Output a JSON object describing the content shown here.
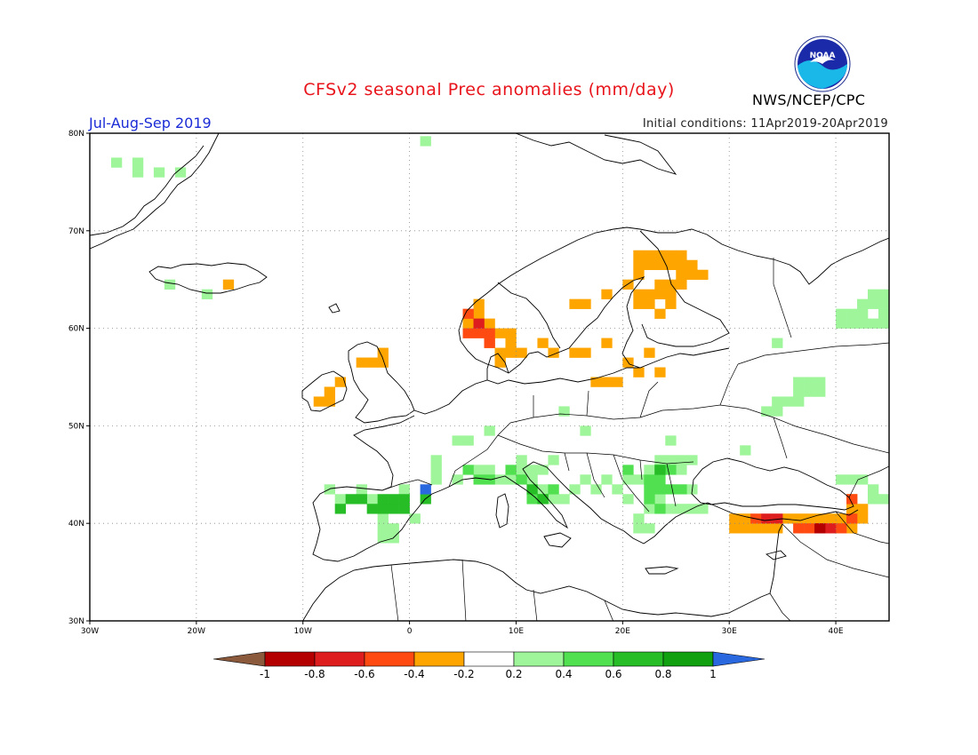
{
  "title": "CFSv2 seasonal Prec anomalies (mm/day)",
  "period": "Jul-Aug-Sep 2019",
  "initial_conditions": "Initial conditions: 11Apr2019-20Apr2019",
  "agency": "NWS/NCEP/CPC",
  "logo_text": "NOAA",
  "map": {
    "lon_range": [
      -30,
      45
    ],
    "lat_range": [
      30,
      80
    ],
    "lon_ticks": [
      "30W",
      "20W",
      "10W",
      "0",
      "10E",
      "20E",
      "30E",
      "40E"
    ],
    "lat_ticks": [
      "80N",
      "70N",
      "60N",
      "50N",
      "40N",
      "30N"
    ]
  },
  "colorbar": {
    "labels": [
      "-1",
      "-0.8",
      "-0.6",
      "-0.4",
      "-0.2",
      "0.2",
      "0.4",
      "0.6",
      "0.8",
      "1"
    ],
    "colors": [
      "#8b5a3c",
      "#b40000",
      "#de1e1e",
      "#ff4a12",
      "#ffa500",
      "#ffffff",
      "#9ef59a",
      "#50e050",
      "#26bd26",
      "#10a010",
      "#2a68e0"
    ]
  },
  "anomaly_regions": [
    {
      "name": "greenland-wet",
      "color": "#9ef59a",
      "cells": [
        [
          -27.5,
          77
        ],
        [
          -25.5,
          77
        ],
        [
          -25.5,
          76
        ],
        [
          -23.5,
          76
        ],
        [
          -21.5,
          76
        ]
      ]
    },
    {
      "name": "iceland",
      "color": "#ffa500",
      "cells": [
        [
          -17,
          64.5
        ]
      ]
    },
    {
      "name": "iceland-wet",
      "color": "#9ef59a",
      "cells": [
        [
          -22.5,
          64.5
        ],
        [
          -19,
          63.5
        ]
      ]
    },
    {
      "name": "svalbard-wet",
      "color": "#9ef59a",
      "cells": [
        [
          1.5,
          79.2
        ]
      ]
    },
    {
      "name": "norway-dry",
      "color": "#ffa500",
      "cells": [
        [
          6.5,
          62.5
        ],
        [
          6.5,
          61.5
        ],
        [
          5.5,
          60.5
        ],
        [
          7.5,
          60.5
        ],
        [
          8.5,
          59.5
        ],
        [
          9.5,
          59.5
        ],
        [
          7.5,
          58.5
        ],
        [
          9.5,
          58.5
        ],
        [
          8.5,
          57.5
        ],
        [
          9.5,
          57.5
        ],
        [
          10.5,
          57.5
        ],
        [
          8.5,
          56.5
        ]
      ]
    },
    {
      "name": "norway-strongdry",
      "color": "#ff4a12",
      "cells": [
        [
          5.5,
          61.5
        ],
        [
          5.5,
          59.5
        ],
        [
          6.5,
          59.5
        ],
        [
          7.5,
          59.5
        ],
        [
          7.5,
          58.5
        ]
      ]
    },
    {
      "name": "norway-reddry",
      "color": "#de1e1e",
      "cells": [
        [
          6.5,
          60.5
        ]
      ]
    },
    {
      "name": "sweden-finland-dry",
      "color": "#ffa500",
      "cells": [
        [
          21.5,
          67.5
        ],
        [
          22.5,
          67.5
        ],
        [
          23.5,
          67.5
        ],
        [
          24.5,
          67.5
        ],
        [
          25.5,
          67.5
        ],
        [
          21.5,
          66.5
        ],
        [
          22.5,
          66.5
        ],
        [
          23.5,
          66.5
        ],
        [
          24.5,
          66.5
        ],
        [
          25.5,
          66.5
        ],
        [
          26.5,
          66.5
        ],
        [
          21.5,
          65.5
        ],
        [
          25.5,
          65.5
        ],
        [
          26.5,
          65.5
        ],
        [
          27.5,
          65.5
        ],
        [
          20.5,
          64.5
        ],
        [
          23.5,
          64.5
        ],
        [
          24.5,
          64.5
        ],
        [
          25.5,
          64.5
        ],
        [
          21.5,
          63.5
        ],
        [
          22.5,
          63.5
        ],
        [
          23.5,
          63.5
        ],
        [
          24.5,
          63.5
        ],
        [
          21.5,
          62.5
        ],
        [
          22.5,
          62.5
        ],
        [
          24.5,
          62.5
        ],
        [
          23.5,
          61.5
        ],
        [
          16.5,
          62.5
        ],
        [
          15.5,
          62.5
        ],
        [
          18.5,
          63.5
        ],
        [
          12.5,
          58.5
        ],
        [
          13.5,
          57.5
        ],
        [
          15.5,
          57.5
        ],
        [
          16.5,
          57.5
        ],
        [
          18.5,
          58.5
        ],
        [
          22.5,
          57.5
        ],
        [
          20.5,
          56.5
        ],
        [
          21.5,
          55.5
        ],
        [
          23.5,
          55.5
        ],
        [
          17.5,
          54.5
        ],
        [
          18.5,
          54.5
        ],
        [
          19.5,
          54.5
        ]
      ]
    },
    {
      "name": "ireland-uk-dry",
      "color": "#ffa500",
      "cells": [
        [
          -8.5,
          52.5
        ],
        [
          -7.5,
          52.5
        ],
        [
          -7.5,
          53.5
        ],
        [
          -6.5,
          54.5
        ],
        [
          -4.5,
          56.5
        ],
        [
          -3.5,
          56.5
        ],
        [
          -2.5,
          56.5
        ],
        [
          -2.5,
          57.5
        ]
      ]
    },
    {
      "name": "iberia-wet",
      "color": "#9ef59a",
      "cells": [
        [
          -7.5,
          43.5
        ],
        [
          -6.5,
          42.5
        ],
        [
          -4.5,
          43.5
        ],
        [
          -3.5,
          42.5
        ],
        [
          -2.5,
          41.5
        ],
        [
          -2.5,
          40.5
        ],
        [
          -2.5,
          39.5
        ],
        [
          -2.5,
          38.5
        ],
        [
          -1.5,
          39.5
        ],
        [
          -1.5,
          38.5
        ],
        [
          0.5,
          40.5
        ],
        [
          -0.5,
          43.5
        ],
        [
          2.5,
          44.5
        ],
        [
          2.5,
          45.5
        ],
        [
          2.5,
          46.5
        ],
        [
          4.5,
          48.5
        ],
        [
          5.5,
          48.5
        ],
        [
          7.5,
          49.5
        ]
      ]
    },
    {
      "name": "iberia-moderate",
      "color": "#26bd26",
      "cells": [
        [
          -6.5,
          41.5
        ],
        [
          -5.5,
          42.5
        ],
        [
          -4.5,
          42.5
        ],
        [
          -3.5,
          41.5
        ],
        [
          -2.5,
          42.5
        ],
        [
          -1.5,
          42.5
        ],
        [
          -0.5,
          41.5
        ],
        [
          -0.5,
          42.5
        ],
        [
          -1.5,
          41.5
        ],
        [
          -2.5,
          41.5
        ],
        [
          1.5,
          42.5
        ]
      ]
    },
    {
      "name": "iberia-blue",
      "color": "#2a68e0",
      "cells": [
        [
          1.5,
          43.5
        ]
      ]
    },
    {
      "name": "alps-italy-wet",
      "color": "#9ef59a",
      "cells": [
        [
          4.5,
          44.5
        ],
        [
          6.5,
          45.5
        ],
        [
          7.5,
          45.5
        ],
        [
          8.5,
          44.5
        ],
        [
          9.5,
          44.5
        ],
        [
          10.5,
          45.5
        ],
        [
          11.5,
          45.5
        ],
        [
          12.5,
          45.5
        ],
        [
          11.5,
          44.5
        ],
        [
          12.5,
          43.5
        ],
        [
          13.5,
          42.5
        ],
        [
          14.5,
          42.5
        ],
        [
          11.5,
          43.5
        ],
        [
          10.5,
          46.5
        ],
        [
          13.5,
          46.5
        ],
        [
          15.5,
          43.5
        ],
        [
          16.5,
          44.5
        ],
        [
          17.5,
          43.5
        ],
        [
          18.5,
          44.5
        ],
        [
          19.5,
          43.5
        ],
        [
          20.5,
          42.5
        ],
        [
          21.5,
          44.5
        ],
        [
          22.5,
          45.5
        ],
        [
          23.5,
          46.5
        ],
        [
          24.5,
          46.5
        ],
        [
          25.5,
          46.5
        ],
        [
          26.5,
          46.5
        ],
        [
          25.5,
          45.5
        ],
        [
          26.5,
          43.5
        ],
        [
          23.5,
          42.5
        ],
        [
          22.5,
          41.5
        ],
        [
          21.5,
          40.5
        ],
        [
          24.5,
          41.5
        ],
        [
          25.5,
          41.5
        ],
        [
          26.5,
          41.5
        ],
        [
          27.5,
          41.5
        ],
        [
          22.5,
          39.5
        ],
        [
          21.5,
          39.5
        ],
        [
          20.5,
          44.5
        ],
        [
          24.5,
          48.5
        ],
        [
          31.5,
          47.5
        ],
        [
          14.5,
          51.5
        ],
        [
          16.5,
          49.5
        ]
      ]
    },
    {
      "name": "alps-italy-moderate",
      "color": "#50e050",
      "cells": [
        [
          5.5,
          45.5
        ],
        [
          6.5,
          44.5
        ],
        [
          7.5,
          44.5
        ],
        [
          9.5,
          45.5
        ],
        [
          10.5,
          44.5
        ],
        [
          11.5,
          42.5
        ],
        [
          12.5,
          42.5
        ],
        [
          13.5,
          43.5
        ],
        [
          20.5,
          45.5
        ],
        [
          22.5,
          44.5
        ],
        [
          23.5,
          45.5
        ],
        [
          24.5,
          45.5
        ],
        [
          23.5,
          44.5
        ],
        [
          22.5,
          43.5
        ],
        [
          23.5,
          43.5
        ],
        [
          24.5,
          43.5
        ],
        [
          25.5,
          43.5
        ],
        [
          23.5,
          41.5
        ],
        [
          22.5,
          42.5
        ]
      ]
    },
    {
      "name": "balkans-strong",
      "color": "#26bd26",
      "cells": [
        [
          11.5,
          43.5
        ],
        [
          12.5,
          42.5
        ],
        [
          23.5,
          45.5
        ]
      ]
    },
    {
      "name": "turkey-dry",
      "color": "#ffa500",
      "cells": [
        [
          30.5,
          40.5
        ],
        [
          31.5,
          40.5
        ],
        [
          30.5,
          39.5
        ],
        [
          31.5,
          39.5
        ],
        [
          32.5,
          39.5
        ],
        [
          33.5,
          39.5
        ],
        [
          34.5,
          39.5
        ],
        [
          35.5,
          40.5
        ],
        [
          36.5,
          40.5
        ],
        [
          37.5,
          40.5
        ],
        [
          38.5,
          40.5
        ],
        [
          39.5,
          40.5
        ],
        [
          40.5,
          40.5
        ],
        [
          41.5,
          41.5
        ],
        [
          41.5,
          39.5
        ],
        [
          42.5,
          41.5
        ],
        [
          42.5,
          40.5
        ],
        [
          41.5,
          42.5
        ]
      ]
    },
    {
      "name": "turkey-strongdry",
      "color": "#ff4a12",
      "cells": [
        [
          32.5,
          40.5
        ],
        [
          36.5,
          39.5
        ],
        [
          37.5,
          39.5
        ],
        [
          39.5,
          39.5
        ],
        [
          40.5,
          39.5
        ],
        [
          41.5,
          40.5
        ],
        [
          41.5,
          42.5
        ]
      ]
    },
    {
      "name": "turkey-reddry",
      "color": "#de1e1e",
      "cells": [
        [
          33.5,
          40.5
        ],
        [
          34.5,
          40.5
        ],
        [
          38.5,
          39.5
        ],
        [
          39.5,
          39.5
        ]
      ]
    },
    {
      "name": "turkey-darkred",
      "color": "#b40000",
      "cells": [
        [
          38.5,
          39.5
        ]
      ]
    },
    {
      "name": "east-wet",
      "color": "#9ef59a",
      "cells": [
        [
          40.5,
          61.5
        ],
        [
          41.5,
          61.5
        ],
        [
          42.5,
          62.5
        ],
        [
          43.5,
          63.5
        ],
        [
          44.5,
          63.5
        ],
        [
          44.5,
          62.5
        ],
        [
          43.5,
          62.5
        ],
        [
          42.5,
          61.5
        ],
        [
          44.5,
          61.5
        ],
        [
          43.5,
          60.5
        ],
        [
          42.5,
          60.5
        ],
        [
          41.5,
          60.5
        ],
        [
          44.5,
          60.5
        ],
        [
          40.5,
          60.5
        ],
        [
          34.5,
          58.5
        ],
        [
          36.5,
          54.5
        ],
        [
          37.5,
          54.5
        ],
        [
          38.5,
          54.5
        ],
        [
          36.5,
          53.5
        ],
        [
          37.5,
          53.5
        ],
        [
          38.5,
          53.5
        ],
        [
          34.5,
          52.5
        ],
        [
          35.5,
          52.5
        ],
        [
          36.5,
          52.5
        ],
        [
          33.5,
          51.5
        ],
        [
          34.5,
          51.5
        ],
        [
          40.5,
          44.5
        ],
        [
          41.5,
          44.5
        ],
        [
          42.5,
          44.5
        ],
        [
          43.5,
          43.5
        ],
        [
          44.5,
          42.5
        ],
        [
          43.5,
          42.5
        ]
      ]
    }
  ]
}
